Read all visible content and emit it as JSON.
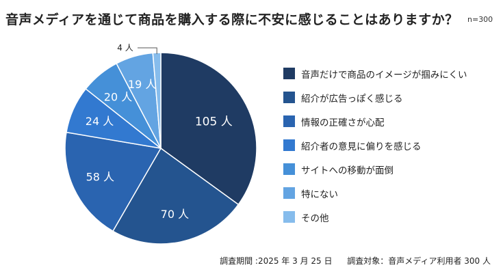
{
  "header": {
    "title": "音声メディアを通じて商品を購入する際に不安に感じることはありますか？",
    "sample": "n=300"
  },
  "footer": {
    "survey_date": "調査期間 :2025 年 3 月 25 日",
    "survey_target": "調査対象：音声メディア利用者 300 人"
  },
  "chart_data": {
    "type": "pie",
    "title": "音声メディアを通じて商品を購入する際に不安に感じることはありますか？",
    "unit": "人",
    "total": 300,
    "legend_position": "right",
    "slices": [
      {
        "label": "音声だけで商品のイメージが掴みにくい",
        "value": 105,
        "display": "105 人",
        "color": "#1f3b63"
      },
      {
        "label": "紹介が広告っぽく感じる",
        "value": 70,
        "display": "70 人",
        "color": "#24548f"
      },
      {
        "label": "情報の正確さが心配",
        "value": 58,
        "display": "58 人",
        "color": "#2a64b0"
      },
      {
        "label": "紹介者の意見に偏りを感じる",
        "value": 24,
        "display": "24 人",
        "color": "#3279d0"
      },
      {
        "label": "サイトへの移動が面倒",
        "value": 20,
        "display": "20 人",
        "color": "#4590d8"
      },
      {
        "label": "特にない",
        "value": 19,
        "display": "19 人",
        "color": "#63a4e2"
      },
      {
        "label": "その他",
        "value": 4,
        "display": "4 人",
        "color": "#86bcec"
      }
    ]
  }
}
